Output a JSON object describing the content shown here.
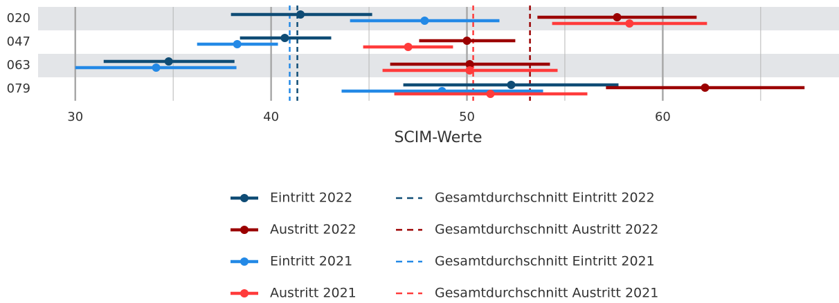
{
  "chart_data": {
    "type": "dot-interval",
    "x_label": "SCIM-Werte",
    "categories": [
      "020",
      "047",
      "063",
      "079"
    ],
    "xlim": [
      28.1,
      69
    ],
    "xticks": [
      30,
      40,
      50,
      60
    ],
    "xminorticks": [
      35,
      45,
      55,
      65
    ],
    "grid": true,
    "series": [
      {
        "name": "Eintritt 2022",
        "color": "#0f4c75",
        "values": [
          41.5,
          40.7,
          34.77,
          52.26
        ],
        "lower": [
          37.95,
          38.41,
          31.45,
          46.75
        ],
        "upper": [
          45.16,
          43.07,
          38.13,
          57.74
        ]
      },
      {
        "name": "Austritt 2022",
        "color": "#9b0000",
        "values": [
          57.67,
          50.0,
          50.14,
          62.16
        ],
        "lower": [
          53.6,
          47.56,
          46.08,
          57.1
        ],
        "upper": [
          61.73,
          52.47,
          54.24,
          67.24
        ]
      },
      {
        "name": "Eintritt 2021",
        "color": "#2389e6",
        "values": [
          47.84,
          38.27,
          34.13,
          48.73
        ],
        "lower": [
          44.03,
          36.22,
          30.0,
          43.6
        ],
        "upper": [
          51.66,
          40.35,
          38.23,
          53.89
        ]
      },
      {
        "name": "Austritt 2021",
        "color": "#ff3b3b",
        "values": [
          58.3,
          47.0,
          50.14,
          51.2
        ],
        "lower": [
          54.35,
          44.7,
          45.69,
          46.29
        ],
        "upper": [
          62.26,
          49.29,
          54.63,
          56.15
        ]
      }
    ],
    "reference_lines": [
      {
        "name": "Gesamtdurchschnitt Eintritt 2022",
        "color": "#0f4c75",
        "value": 41.34
      },
      {
        "name": "Gesamtdurchschnitt Austritt 2022",
        "color": "#9b0000",
        "value": 53.22
      },
      {
        "name": "Gesamtdurchschnitt Eintritt 2021",
        "color": "#2389e6",
        "value": 40.95
      },
      {
        "name": "Gesamtdurchschnitt Austritt 2021",
        "color": "#ff3b3b",
        "value": 50.32
      }
    ]
  }
}
